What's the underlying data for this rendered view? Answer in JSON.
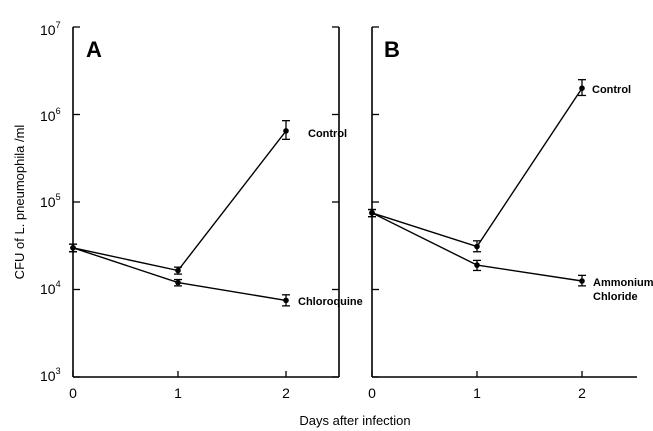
{
  "chart_data": {
    "type": "line",
    "xlabel": "Days after infection",
    "ylabel": "CFU of L. pneumophila /ml",
    "y_scale": "log",
    "ylim": [
      1000,
      10000000
    ],
    "y_ticks": [
      {
        "value": 1000,
        "base": "10",
        "exp": "3"
      },
      {
        "value": 10000,
        "base": "10",
        "exp": "4"
      },
      {
        "value": 100000,
        "base": "10",
        "exp": "5"
      },
      {
        "value": 1000000,
        "base": "10",
        "exp": "6"
      },
      {
        "value": 10000000,
        "base": "10",
        "exp": "7"
      }
    ],
    "x_ticks": [
      "0",
      "1",
      "2"
    ],
    "panels": [
      {
        "label": "A",
        "x": [
          0,
          1,
          2
        ],
        "series": [
          {
            "name": "Control",
            "values": [
              30000,
              16500,
              650000
            ],
            "err_low": [
              27000,
              15000,
              520000
            ],
            "err_high": [
              33000,
              18000,
              850000
            ]
          },
          {
            "name": "Chloroquine",
            "values": [
              30000,
              12000,
              7500
            ],
            "err_low": [
              27000,
              11000,
              6500
            ],
            "err_high": [
              33000,
              13000,
              8700
            ]
          }
        ]
      },
      {
        "label": "B",
        "x": [
          0,
          1,
          2
        ],
        "series": [
          {
            "name": "Control",
            "values": [
              75000,
              31000,
              2000000
            ],
            "err_low": [
              68000,
              27000,
              1650000
            ],
            "err_high": [
              82000,
              36000,
              2500000
            ]
          },
          {
            "name": "Ammonium",
            "name_line2": "Chloride",
            "values": [
              75000,
              19000,
              12500
            ],
            "err_low": [
              68000,
              16500,
              11000
            ],
            "err_high": [
              82000,
              21500,
              14500
            ]
          }
        ]
      }
    ]
  }
}
